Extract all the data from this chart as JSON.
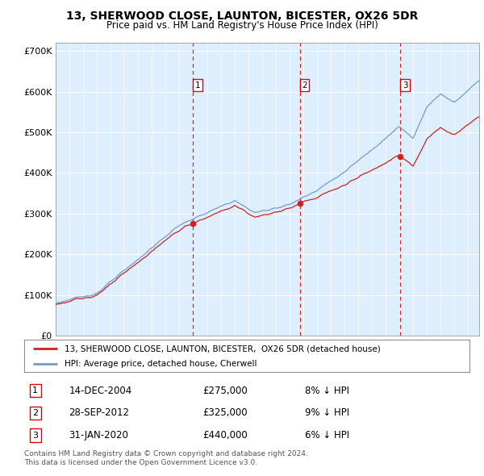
{
  "title": "13, SHERWOOD CLOSE, LAUNTON, BICESTER, OX26 5DR",
  "subtitle": "Price paid vs. HM Land Registry's House Price Index (HPI)",
  "sales": [
    {
      "date_year": 2004.96,
      "price": 275000,
      "label": "1",
      "pct": "8% ↓ HPI",
      "date_str": "14-DEC-2004"
    },
    {
      "date_year": 2012.75,
      "price": 325000,
      "label": "2",
      "pct": "9% ↓ HPI",
      "date_str": "28-SEP-2012"
    },
    {
      "date_year": 2020.08,
      "price": 440000,
      "label": "3",
      "pct": "6% ↓ HPI",
      "date_str": "31-JAN-2020"
    }
  ],
  "legend_property": "13, SHERWOOD CLOSE, LAUNTON, BICESTER,  OX26 5DR (detached house)",
  "legend_hpi": "HPI: Average price, detached house, Cherwell",
  "footer1": "Contains HM Land Registry data © Crown copyright and database right 2024.",
  "footer2": "This data is licensed under the Open Government Licence v3.0.",
  "hpi_color": "#7799cc",
  "property_color": "#cc2222",
  "vline_color": "#dd0000",
  "background_color": "#ddeeff",
  "plot_bg": "#ddeeff",
  "ylim": [
    0,
    720000
  ],
  "yticks": [
    0,
    100000,
    200000,
    300000,
    400000,
    500000,
    600000,
    700000
  ],
  "xlim_start": 1995.0,
  "xlim_end": 2025.8
}
